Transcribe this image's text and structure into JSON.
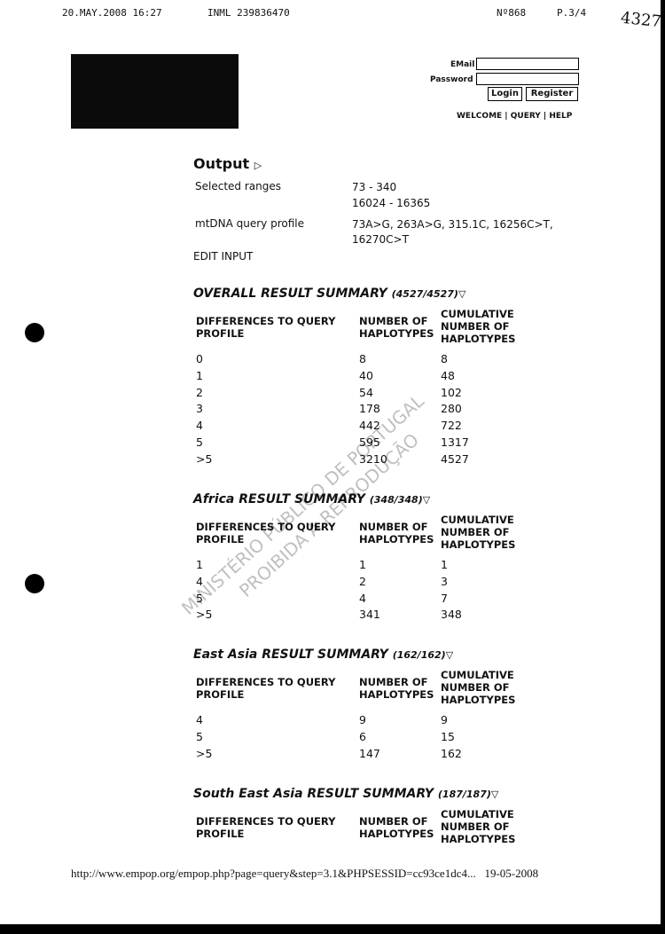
{
  "fax_header": {
    "datetime": "20.MAY.2008 16:27",
    "sender": "INML 239836470",
    "number": "Nº868",
    "page": "P.3/4",
    "handwritten": "4327"
  },
  "login": {
    "email_label": "EMail",
    "password_label": "Password",
    "login_button": "Login",
    "register_button": "Register"
  },
  "nav": [
    "WELCOME",
    "QUERY",
    "HELP"
  ],
  "output": {
    "title": "Output",
    "selected_ranges_label": "Selected ranges",
    "ranges": [
      "73 - 340",
      "16024 - 16365"
    ],
    "profile_label": "mtDNA query profile",
    "profile": "73A>G, 263A>G, 315.1C, 16256C>T, 16270C>T",
    "edit_link": "EDIT INPUT"
  },
  "summaries": [
    {
      "title": "OVERALL RESULT SUMMARY",
      "count": "(4527/4527)",
      "headers": [
        "DIFFERENCES TO QUERY PROFILE",
        "NUMBER OF HAPLOTYPES",
        "CUMULATIVE NUMBER OF HAPLOTYPES"
      ],
      "rows": [
        [
          "0",
          "8",
          "8"
        ],
        [
          "1",
          "40",
          "48"
        ],
        [
          "2",
          "54",
          "102"
        ],
        [
          "3",
          "178",
          "280"
        ],
        [
          "4",
          "442",
          "722"
        ],
        [
          "5",
          "595",
          "1317"
        ],
        [
          ">5",
          "3210",
          "4527"
        ]
      ]
    },
    {
      "title": "Africa RESULT SUMMARY",
      "count": "(348/348)",
      "headers": [
        "DIFFERENCES TO QUERY PROFILE",
        "NUMBER OF HAPLOTYPES",
        "CUMULATIVE NUMBER OF HAPLOTYPES"
      ],
      "rows": [
        [
          "1",
          "1",
          "1"
        ],
        [
          "4",
          "2",
          "3"
        ],
        [
          "5",
          "4",
          "7"
        ],
        [
          ">5",
          "341",
          "348"
        ]
      ]
    },
    {
      "title": "East Asia RESULT SUMMARY",
      "count": "(162/162)",
      "headers": [
        "DIFFERENCES TO QUERY PROFILE",
        "NUMBER OF HAPLOTYPES",
        "CUMULATIVE NUMBER OF HAPLOTYPES"
      ],
      "rows": [
        [
          "4",
          "9",
          "9"
        ],
        [
          "5",
          "6",
          "15"
        ],
        [
          ">5",
          "147",
          "162"
        ]
      ]
    },
    {
      "title": "South East Asia RESULT SUMMARY",
      "count": "(187/187)",
      "headers": [
        "DIFFERENCES TO QUERY PROFILE",
        "NUMBER OF HAPLOTYPES",
        "CUMULATIVE NUMBER OF HAPLOTYPES"
      ],
      "rows": []
    }
  ],
  "watermark": [
    "MINISTÉRIO PÚBLICO DE PORTUGAL",
    "PROIBIDA A REPRODUÇÃO"
  ],
  "footer": {
    "url": "http://www.empop.org/empop.php?page=query&step=3.1&PHPSESSID=cc93ce1dc4...",
    "date": "19-05-2008"
  }
}
